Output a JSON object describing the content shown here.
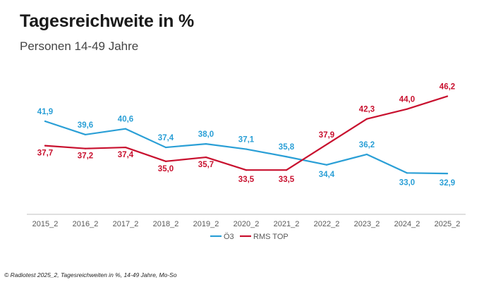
{
  "header": {
    "title": "Tagesreichweite in %",
    "subtitle": "Personen 14-49 Jahre"
  },
  "footer": {
    "source": "© Radiotest 2025_2, Tagesreichweiten in %, 14-49 Jahre, Mo-So"
  },
  "colors": {
    "oe3": "#2a9fd6",
    "rms": "#c8102e",
    "axis": "#bfbfbf",
    "tick_text": "#595959"
  },
  "chart_data": {
    "type": "line",
    "title": "Tagesreichweite in %",
    "subtitle": "Personen 14-49 Jahre",
    "xlabel": "",
    "ylabel": "",
    "categories": [
      "2015_2",
      "2016_2",
      "2017_2",
      "2018_2",
      "2019_2",
      "2020_2",
      "2021_2",
      "2022_2",
      "2023_2",
      "2024_2",
      "2025_2"
    ],
    "series": [
      {
        "name": "Ö3",
        "color": "#2a9fd6",
        "values": [
          41.9,
          39.6,
          40.6,
          37.4,
          38.0,
          37.1,
          35.8,
          34.4,
          36.2,
          33.0,
          32.9
        ],
        "labels": [
          "41,9",
          "39,6",
          "40,6",
          "37,4",
          "38,0",
          "37,1",
          "35,8",
          "34,4",
          "36,2",
          "33,0",
          "32,9"
        ]
      },
      {
        "name": "RMS TOP",
        "color": "#c8102e",
        "values": [
          37.7,
          37.2,
          37.4,
          35.0,
          35.7,
          33.5,
          33.5,
          37.9,
          42.3,
          44.0,
          46.2
        ],
        "labels": [
          "37,7",
          "37,2",
          "37,4",
          "35,0",
          "35,7",
          "33,5",
          "33,5",
          "37,9",
          "42,3",
          "44,0",
          "46,2"
        ]
      }
    ],
    "ylim": [
      26,
      51
    ],
    "grid": false,
    "legend": "bottom-center"
  }
}
